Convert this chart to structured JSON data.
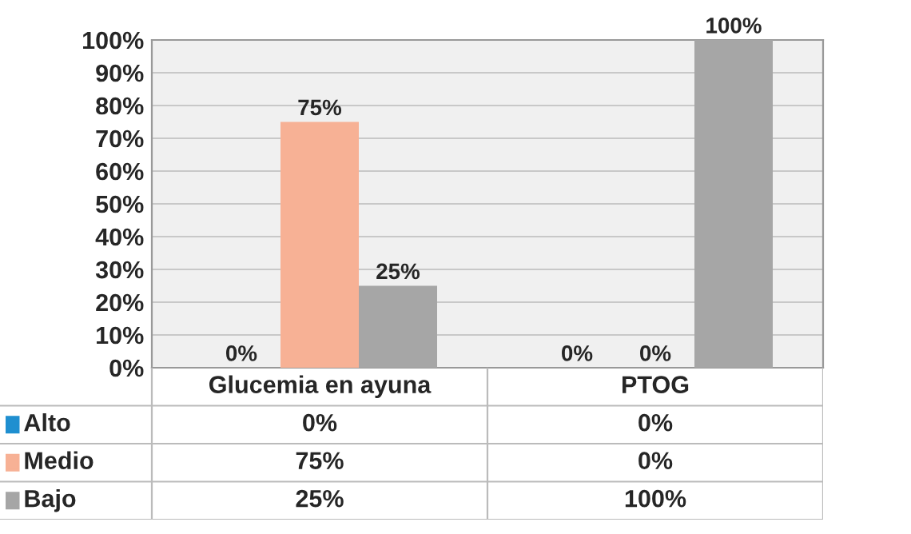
{
  "chart_data": {
    "type": "bar",
    "categories": [
      "Glucemia en ayuna",
      "PTOG"
    ],
    "series": [
      {
        "name": "Alto",
        "color": "#1f8fd0",
        "values": [
          0,
          0
        ],
        "value_labels": [
          "0%",
          "0%"
        ]
      },
      {
        "name": "Medio",
        "color": "#f7b195",
        "values": [
          75,
          0
        ],
        "value_labels": [
          "75%",
          "0%"
        ]
      },
      {
        "name": "Bajo",
        "color": "#a6a6a6",
        "values": [
          25,
          100
        ],
        "value_labels": [
          "25%",
          "100%"
        ]
      }
    ],
    "ylim": [
      0,
      100
    ],
    "yticks": [
      {
        "value": 0,
        "label": "0%"
      },
      {
        "value": 10,
        "label": "10%"
      },
      {
        "value": 20,
        "label": "20%"
      },
      {
        "value": 30,
        "label": "30%"
      },
      {
        "value": 40,
        "label": "40%"
      },
      {
        "value": 50,
        "label": "50%"
      },
      {
        "value": 60,
        "label": "60%"
      },
      {
        "value": 70,
        "label": "70%"
      },
      {
        "value": 80,
        "label": "80%"
      },
      {
        "value": 90,
        "label": "90%"
      },
      {
        "value": 100,
        "label": "100%"
      }
    ],
    "grid": "y",
    "legend": "bottom"
  }
}
